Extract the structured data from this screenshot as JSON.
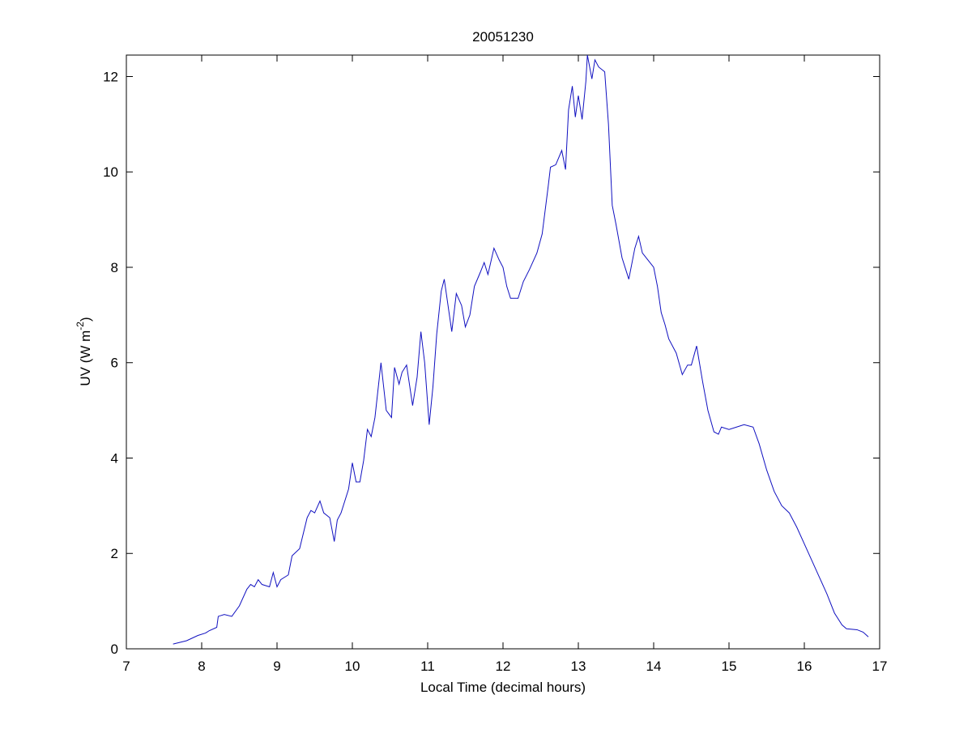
{
  "chart_data": {
    "type": "line",
    "title": "20051230",
    "xlabel": "Local Time (decimal hours)",
    "ylabel": {
      "base": "UV (W m",
      "exponent": "-2",
      "close": ")"
    },
    "xlim": [
      7,
      17
    ],
    "xticks": [
      7,
      8,
      9,
      10,
      11,
      12,
      13,
      14,
      15,
      16,
      17
    ],
    "ylim": [
      0,
      12.45
    ],
    "yticks": [
      0,
      2,
      4,
      6,
      8,
      10,
      12
    ],
    "grid": false,
    "series": [
      {
        "color": "#1010c0",
        "x": [
          7.62,
          7.8,
          7.95,
          8.05,
          8.1,
          8.2,
          8.22,
          8.3,
          8.4,
          8.5,
          8.6,
          8.65,
          8.7,
          8.75,
          8.8,
          8.9,
          8.95,
          9.0,
          9.05,
          9.15,
          9.2,
          9.3,
          9.4,
          9.45,
          9.5,
          9.57,
          9.62,
          9.7,
          9.76,
          9.8,
          9.85,
          9.9,
          9.95,
          10.0,
          10.05,
          10.1,
          10.15,
          10.2,
          10.25,
          10.3,
          10.38,
          10.45,
          10.52,
          10.56,
          10.62,
          10.66,
          10.72,
          10.8,
          10.86,
          10.91,
          10.96,
          11.02,
          11.07,
          11.12,
          11.18,
          11.22,
          11.27,
          11.32,
          11.38,
          11.45,
          11.5,
          11.56,
          11.62,
          11.7,
          11.75,
          11.8,
          11.88,
          11.95,
          12.0,
          12.05,
          12.1,
          12.2,
          12.27,
          12.35,
          12.45,
          12.52,
          12.6,
          12.63,
          12.7,
          12.78,
          12.83,
          12.87,
          12.92,
          12.96,
          13.0,
          13.05,
          13.1,
          13.12,
          13.18,
          13.22,
          13.27,
          13.35,
          13.4,
          13.45,
          13.5,
          13.58,
          13.67,
          13.75,
          13.8,
          13.85,
          13.9,
          13.95,
          14.0,
          14.05,
          14.1,
          14.15,
          14.2,
          14.3,
          14.38,
          14.45,
          14.5,
          14.57,
          14.65,
          14.72,
          14.8,
          14.86,
          14.9,
          15.0,
          15.1,
          15.2,
          15.32,
          15.4,
          15.5,
          15.6,
          15.7,
          15.8,
          15.9,
          16.0,
          16.1,
          16.2,
          16.3,
          16.4,
          16.5,
          16.56,
          16.7,
          16.78,
          16.85
        ],
        "values": [
          0.1,
          0.17,
          0.28,
          0.33,
          0.38,
          0.45,
          0.68,
          0.72,
          0.68,
          0.9,
          1.25,
          1.35,
          1.3,
          1.45,
          1.35,
          1.3,
          1.6,
          1.3,
          1.45,
          1.55,
          1.95,
          2.1,
          2.75,
          2.9,
          2.85,
          3.1,
          2.85,
          2.75,
          2.25,
          2.7,
          2.85,
          3.1,
          3.35,
          3.9,
          3.5,
          3.5,
          3.95,
          4.6,
          4.45,
          4.85,
          6.0,
          5.0,
          4.85,
          5.9,
          5.55,
          5.8,
          5.95,
          5.1,
          5.7,
          6.65,
          6.0,
          4.7,
          5.5,
          6.6,
          7.5,
          7.75,
          7.2,
          6.65,
          7.45,
          7.2,
          6.75,
          7.0,
          7.6,
          7.9,
          8.1,
          7.85,
          8.4,
          8.15,
          8.0,
          7.6,
          7.35,
          7.35,
          7.7,
          7.95,
          8.3,
          8.7,
          9.7,
          10.1,
          10.15,
          10.45,
          10.05,
          11.3,
          11.8,
          11.15,
          11.6,
          11.1,
          11.9,
          12.45,
          11.95,
          12.35,
          12.2,
          12.1,
          11.0,
          9.3,
          8.9,
          8.2,
          7.75,
          8.4,
          8.65,
          8.3,
          8.2,
          8.1,
          8.0,
          7.6,
          7.05,
          6.8,
          6.5,
          6.2,
          5.75,
          5.95,
          5.95,
          6.35,
          5.6,
          5.0,
          4.55,
          4.5,
          4.65,
          4.6,
          4.65,
          4.7,
          4.65,
          4.3,
          3.75,
          3.3,
          3.0,
          2.85,
          2.55,
          2.2,
          1.85,
          1.5,
          1.15,
          0.75,
          0.5,
          0.42,
          0.4,
          0.35,
          0.25
        ]
      }
    ]
  }
}
